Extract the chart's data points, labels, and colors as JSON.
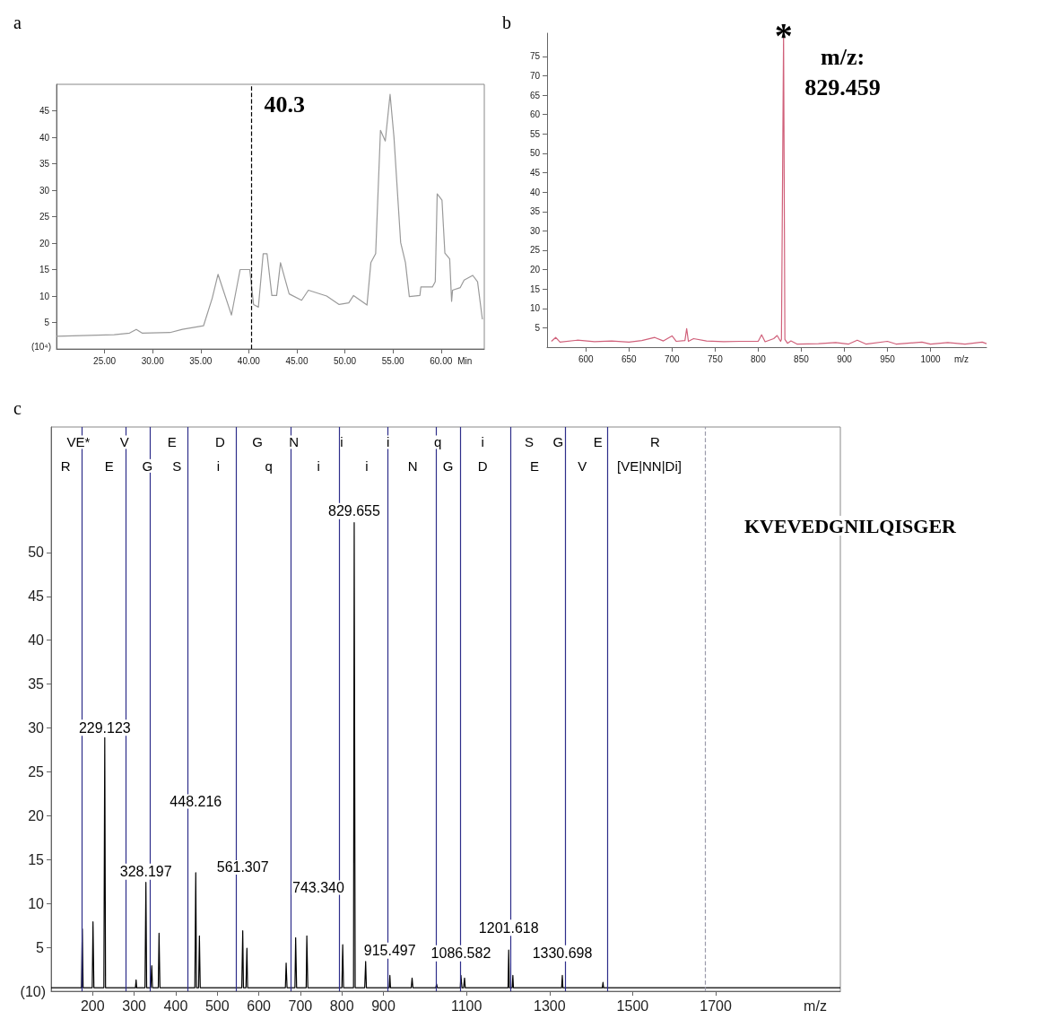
{
  "chart_data": [
    {
      "type": "line",
      "title": "a",
      "xlabel": "Min",
      "color": "#9a9a9a",
      "x": [
        20,
        26.0,
        27.6,
        28.3,
        28.9,
        31.8,
        33.1,
        35.3,
        36.2,
        36.8,
        38.2,
        39.1,
        40.1,
        40.5,
        41.0,
        41.5,
        41.9,
        42.4,
        42.9,
        43.3,
        44.2,
        45.5,
        46.2,
        48.1,
        49.4,
        50.4,
        50.9,
        52.3,
        52.7,
        53.2,
        53.7,
        54.2,
        54.7,
        55.1,
        55.8,
        56.3,
        56.7,
        57.8,
        57.9,
        59.1,
        59.4,
        59.6,
        60.1,
        60.4,
        60.9,
        61.1,
        61.2,
        62.0,
        62.4,
        63.3,
        63.8,
        64.3
      ],
      "values": [
        2.4,
        2.7,
        3.0,
        3.7,
        3.0,
        3.1,
        3.7,
        4.4,
        9.6,
        14.1,
        6.4,
        15.0,
        15.0,
        8.4,
        7.9,
        18.0,
        18.0,
        10.1,
        10.1,
        16.3,
        10.4,
        9.2,
        11.1,
        10.0,
        8.4,
        8.7,
        10.1,
        8.3,
        16.3,
        18.0,
        41.3,
        39.3,
        48.1,
        40.1,
        20.1,
        16.3,
        9.9,
        10.1,
        11.7,
        11.7,
        12.7,
        29.3,
        28.1,
        18.1,
        17.0,
        9.0,
        11.1,
        11.6,
        13.0,
        13.9,
        12.7,
        5.6
      ],
      "xlim": [
        20,
        64.5
      ],
      "ylim": [
        0,
        50
      ],
      "xticks": [
        {
          "value": 25,
          "label": "25.00"
        },
        {
          "value": 30,
          "label": "30.00"
        },
        {
          "value": 35,
          "label": "35.00"
        },
        {
          "value": 40,
          "label": "40.00"
        },
        {
          "value": 45,
          "label": "45.00"
        },
        {
          "value": 50,
          "label": "50.00"
        },
        {
          "value": 55,
          "label": "55.00"
        },
        {
          "value": 60,
          "label": "60.00"
        }
      ],
      "ylabel": "(10⁴)",
      "yticks": [
        5,
        10,
        15,
        20,
        25,
        30,
        35,
        40,
        45
      ],
      "ref_lines": [
        {
          "axis": "x",
          "value": 40.3,
          "label": "40.3",
          "color": "#000000",
          "line_style": "dashed"
        }
      ]
    },
    {
      "type": "line",
      "title": "b",
      "xlabel": "m/z",
      "color": "#d0607a",
      "x": [
        560,
        565,
        570,
        590,
        610,
        630,
        650,
        665,
        680,
        690,
        700,
        705,
        715,
        717,
        719,
        725,
        740,
        760,
        780,
        800,
        804,
        808,
        818,
        822,
        826,
        827,
        829.459,
        831,
        834,
        838,
        845,
        870,
        890,
        905,
        915,
        925,
        950,
        960,
        990,
        1000,
        1020,
        1040,
        1060,
        1065
      ],
      "values": [
        1.5,
        2.5,
        1.3,
        1.8,
        1.4,
        1.6,
        1.3,
        1.7,
        2.5,
        1.6,
        2.9,
        1.5,
        1.7,
        4.8,
        1.5,
        2.2,
        1.6,
        1.4,
        1.5,
        1.5,
        3.2,
        1.4,
        2.2,
        3.0,
        1.5,
        2.0,
        80.5,
        2.0,
        1.0,
        1.6,
        0.8,
        0.9,
        1.2,
        0.8,
        1.8,
        0.8,
        1.5,
        0.8,
        1.3,
        0.8,
        1.2,
        0.8,
        1.3,
        0.9
      ],
      "xlim": [
        555,
        1065
      ],
      "ylim": [
        0,
        81
      ],
      "xticks": [
        600,
        650,
        700,
        750,
        800,
        850,
        900,
        950,
        1000
      ],
      "yticks": [
        5,
        10,
        15,
        20,
        25,
        30,
        35,
        40,
        45,
        50,
        55,
        60,
        65,
        70,
        75
      ],
      "annotations": [
        {
          "text": "*",
          "x": 829.459,
          "y": 80.5
        },
        "m/z:\n829.459"
      ]
    },
    {
      "type": "line",
      "title": "c",
      "xlabel": "m/z",
      "color": "#000000",
      "x": [
        100,
        173,
        175.1,
        177,
        199,
        200.8,
        203,
        227,
        229.123,
        231,
        303,
        304.6,
        306,
        326,
        328.197,
        330,
        340,
        342.3,
        344,
        358,
        359.8,
        362,
        446,
        448.216,
        450,
        455,
        457,
        459,
        559,
        561.307,
        563,
        569,
        571.4,
        573,
        664,
        665.8,
        668,
        687,
        688.7,
        691,
        714,
        715.6,
        718,
        800,
        802,
        804,
        828,
        829.655,
        832,
        855,
        857.2,
        859,
        914,
        915.497,
        917,
        967,
        969,
        971,
        1026,
        1028,
        1030,
        1085,
        1086.582,
        1089,
        1093,
        1095.3,
        1097,
        1200,
        1201.618,
        1203,
        1210,
        1211.6,
        1213,
        1329,
        1330.698,
        1332,
        1427,
        1428.6,
        1430,
        2000
      ],
      "values": [
        0.4,
        0.4,
        7.1,
        0.4,
        0.4,
        7.9,
        0.4,
        0.4,
        28.9,
        0.4,
        0.4,
        1.3,
        0.4,
        0.4,
        12.4,
        0.4,
        0.4,
        2.9,
        0.4,
        0.4,
        6.6,
        0.4,
        0.4,
        13.5,
        0.4,
        0.4,
        6.3,
        0.4,
        0.4,
        6.9,
        0.4,
        0.4,
        4.9,
        0.4,
        0.4,
        3.2,
        0.4,
        0.4,
        6.1,
        0.4,
        0.4,
        6.3,
        0.4,
        0.4,
        5.3,
        0.4,
        0.4,
        53.4,
        0.4,
        0.4,
        3.4,
        0.4,
        0.4,
        1.8,
        0.4,
        0.4,
        1.5,
        0.4,
        0.4,
        0.8,
        0.4,
        0.4,
        1.8,
        0.4,
        0.4,
        1.5,
        0.4,
        0.4,
        4.7,
        0.4,
        0.4,
        1.8,
        0.4,
        0.4,
        1.8,
        0.4,
        0.4,
        1.0,
        0.4,
        0.4
      ],
      "xlim": [
        100,
        2000
      ],
      "ylim": [
        0,
        64.3
      ],
      "xticks": [
        200,
        300,
        400,
        500,
        600,
        700,
        800,
        900,
        1100,
        1300,
        1500,
        1700
      ],
      "ylabel": "(10)",
      "yticks": [
        5,
        10,
        15,
        20,
        25,
        30,
        35,
        40,
        45,
        50
      ],
      "ref_lines": [
        {
          "axis": "x",
          "value": 175,
          "color": "#2e2e8a"
        },
        {
          "axis": "x",
          "value": 280,
          "color": "#2e2e8a"
        },
        {
          "axis": "x",
          "value": 337,
          "color": "#2e2e8a"
        },
        {
          "axis": "x",
          "value": 428,
          "color": "#2e2e8a"
        },
        {
          "axis": "x",
          "value": 546,
          "color": "#2e2e8a"
        },
        {
          "axis": "x",
          "value": 676,
          "color": "#2e2e8a"
        },
        {
          "axis": "x",
          "value": 793,
          "color": "#2e2e8a"
        },
        {
          "axis": "x",
          "value": 910,
          "color": "#2e2e8a"
        },
        {
          "axis": "x",
          "value": 1026,
          "color": "#2e2e8a"
        },
        {
          "axis": "x",
          "value": 1085,
          "color": "#2e2e8a"
        },
        {
          "axis": "x",
          "value": 1206,
          "color": "#2e2e8a"
        },
        {
          "axis": "x",
          "value": 1337,
          "color": "#2e2e8a"
        },
        {
          "axis": "x",
          "value": 1439,
          "color": "#2e2e8a"
        },
        {
          "axis": "x",
          "value": 1674,
          "color": "#9a9aaa",
          "line_style": "dashed"
        }
      ],
      "annotations": [
        {
          "text": "229.123",
          "x": 229.123,
          "y": 29.1
        },
        {
          "text": "328.197",
          "x": 328.197,
          "y": 12.7
        },
        {
          "text": "829.655",
          "x": 829.655,
          "y": 53.8
        },
        {
          "text": "915.497",
          "x": 915.497,
          "y": 3.7
        },
        {
          "text": "1086.582",
          "x": 1086.582,
          "y": 3.4
        },
        {
          "text": "1201.618",
          "x": 1201.618,
          "y": 6.3
        },
        {
          "text": "1330.698",
          "x": 1330.698,
          "y": 3.4
        },
        "448.216",
        "561.307",
        "743.340",
        "VE*",
        "V",
        "E",
        "D",
        "G",
        "N",
        "i",
        "i",
        "q",
        "i",
        "S",
        "G",
        "E",
        "R",
        "R",
        "E",
        "G",
        "S",
        "i",
        "q",
        "i",
        "i",
        "N",
        "G",
        "D",
        "E",
        "V",
        "[VE|NN|Di]",
        "KVEVEDGNILQISGER"
      ]
    }
  ]
}
